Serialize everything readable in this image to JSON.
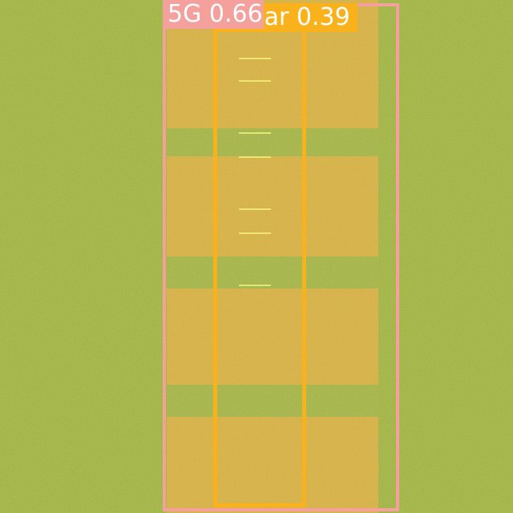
{
  "detections": [
    {
      "class_label": "5G",
      "confidence": "0.66",
      "label_text": "5G 0.66",
      "color": "#f4a09c"
    },
    {
      "class_label": "Radar",
      "confidence": "0.39",
      "label_text": "Radar 0.39",
      "color": "#f9b21b"
    }
  ],
  "colors": {
    "background_base": "#a6b43f",
    "background_noise_a": "#6fbf5a",
    "background_noise_b": "#d4ab3c",
    "signal_band": "#e0b040",
    "signal_gap": "#a9b444",
    "signal_stripe": "#f2f27a"
  }
}
